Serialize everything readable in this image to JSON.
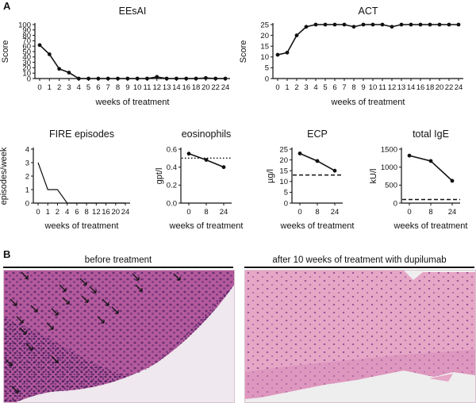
{
  "panel_a_letter": "A",
  "panel_b_letter": "B",
  "chart_data": [
    {
      "id": "eesai",
      "type": "line",
      "title": "EEsAI",
      "xlabel": "weeks of treatment",
      "ylabel": "Score",
      "x": [
        0,
        1,
        2,
        3,
        4,
        5,
        6,
        7,
        8,
        9,
        10,
        11,
        12,
        13,
        14,
        16,
        18,
        20,
        22,
        24
      ],
      "xticks": [
        0,
        1,
        2,
        3,
        4,
        5,
        6,
        7,
        8,
        9,
        10,
        11,
        12,
        13,
        14,
        16,
        18,
        20,
        22,
        24
      ],
      "values": [
        62,
        45,
        18,
        11,
        0,
        0,
        0,
        0,
        0,
        0,
        0,
        0,
        3,
        0,
        0,
        0,
        0,
        1,
        0,
        0
      ],
      "ylim": [
        0,
        100
      ],
      "yticks": [
        0,
        10,
        20,
        30,
        40,
        50,
        60,
        70,
        80,
        90,
        100
      ],
      "markers": true
    },
    {
      "id": "act",
      "type": "line",
      "title": "ACT",
      "xlabel": "weeks of treatment",
      "ylabel": "Score",
      "x": [
        0,
        1,
        2,
        3,
        4,
        5,
        6,
        7,
        8,
        9,
        10,
        11,
        12,
        13,
        14,
        16,
        18,
        20,
        22,
        24
      ],
      "xticks": [
        0,
        1,
        2,
        3,
        4,
        5,
        6,
        7,
        8,
        9,
        10,
        11,
        12,
        13,
        14,
        16,
        18,
        20,
        22,
        24
      ],
      "values": [
        11,
        12,
        20,
        24,
        25,
        25,
        25,
        25,
        24,
        25,
        25,
        25,
        24,
        25,
        25,
        25,
        25,
        25,
        25,
        25
      ],
      "ylim": [
        0,
        25
      ],
      "yticks": [
        0,
        5,
        10,
        15,
        20,
        25
      ],
      "markers": true
    },
    {
      "id": "fire",
      "type": "line",
      "title": "FIRE episodes",
      "xlabel": "weeks of treatment",
      "ylabel": "episodes/week",
      "x": [
        0,
        1,
        2,
        4,
        6,
        8,
        12,
        16,
        20,
        24
      ],
      "xticks": [
        0,
        1,
        2,
        4,
        6,
        8,
        12,
        16,
        20,
        24
      ],
      "values": [
        3,
        1,
        1,
        0,
        0,
        0,
        0,
        0,
        0,
        0
      ],
      "ylim": [
        0,
        4
      ],
      "yticks": [
        0,
        1,
        2,
        3,
        4
      ],
      "markers": false
    },
    {
      "id": "eos",
      "type": "line",
      "title": "eosinophils",
      "xlabel": "weeks of treatment",
      "ylabel": "gpt/l",
      "x": [
        0,
        8,
        24
      ],
      "xticks": [
        0,
        8,
        24
      ],
      "values": [
        0.55,
        0.48,
        0.4
      ],
      "ylim": [
        0,
        0.6
      ],
      "yticks": [
        0.0,
        0.2,
        0.4,
        0.6
      ],
      "ytick_labels": [
        "0.0",
        "0.2",
        "0.4",
        "0.6"
      ],
      "reference_line": 0.5,
      "reference_style": "dotted",
      "markers": true
    },
    {
      "id": "ecp",
      "type": "line",
      "title": "ECP",
      "xlabel": "weeks of treatment",
      "ylabel": "µg/l",
      "x": [
        0,
        8,
        24
      ],
      "xticks": [
        0,
        8,
        24
      ],
      "values": [
        23,
        19.5,
        15
      ],
      "ylim": [
        0,
        25
      ],
      "yticks": [
        0,
        5,
        10,
        15,
        20,
        25
      ],
      "reference_line": 13,
      "reference_style": "dashed",
      "markers": true
    },
    {
      "id": "ige",
      "type": "line",
      "title": "total IgE",
      "xlabel": "weeks of treatment",
      "ylabel": "kU/l",
      "x": [
        0,
        8,
        24
      ],
      "xticks": [
        0,
        8,
        24
      ],
      "values": [
        1320,
        1170,
        620
      ],
      "ylim": [
        0,
        1500
      ],
      "yticks": [
        0,
        500,
        1000,
        1500
      ],
      "reference_line": 100,
      "reference_style": "dashed",
      "markers": true
    }
  ],
  "histology": {
    "before_title": "before treatment",
    "after_title": "after 10 weeks of treatment with dupilumab",
    "tissue_color": "#b45a9c",
    "tissue_color_after": "#e6a6c6",
    "background_color": "#eeeeee"
  }
}
